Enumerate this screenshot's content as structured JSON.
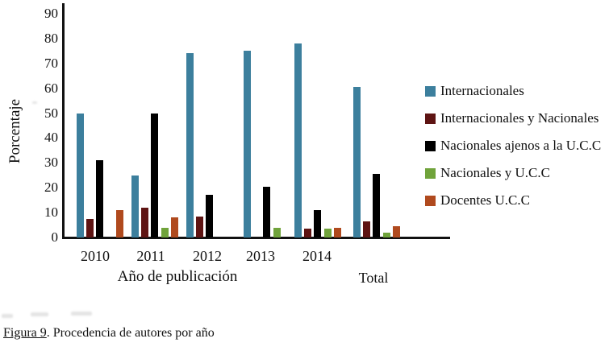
{
  "figure": {
    "caption_label": "Figura 9",
    "caption_text": ". Procedencia de autores por año"
  },
  "chart_data": {
    "type": "bar",
    "title": "",
    "xlabel": "Año de publicación",
    "ylabel": "Porcentaje",
    "categories": [
      "2010",
      "2011",
      "2012",
      "2013",
      "2014",
      "Total"
    ],
    "series": [
      {
        "name": "Internacionales",
        "color": "#3c7f9d",
        "values": [
          50,
          25,
          74,
          75,
          78,
          60.5
        ]
      },
      {
        "name": "Internacionales y Nacionales",
        "color": "#5e1413",
        "values": [
          7.5,
          12,
          8.5,
          0,
          3.5,
          6.5
        ]
      },
      {
        "name": "Nacionales ajenos a la U.C.C",
        "color": "#000000",
        "values": [
          31,
          50,
          17,
          20.5,
          11,
          25.5
        ]
      },
      {
        "name": "Nacionales y U.C.C",
        "color": "#70a33b",
        "values": [
          0,
          4,
          0,
          4,
          3.5,
          2
        ]
      },
      {
        "name": "Docentes U.C.C",
        "color": "#b04a1e",
        "values": [
          11,
          8,
          0,
          0,
          4,
          4.5
        ]
      }
    ],
    "ylim": [
      0,
      90
    ],
    "ytick_step": 10,
    "grid": false,
    "legend_position": "right",
    "bars_with_zero_not_drawn": true
  }
}
